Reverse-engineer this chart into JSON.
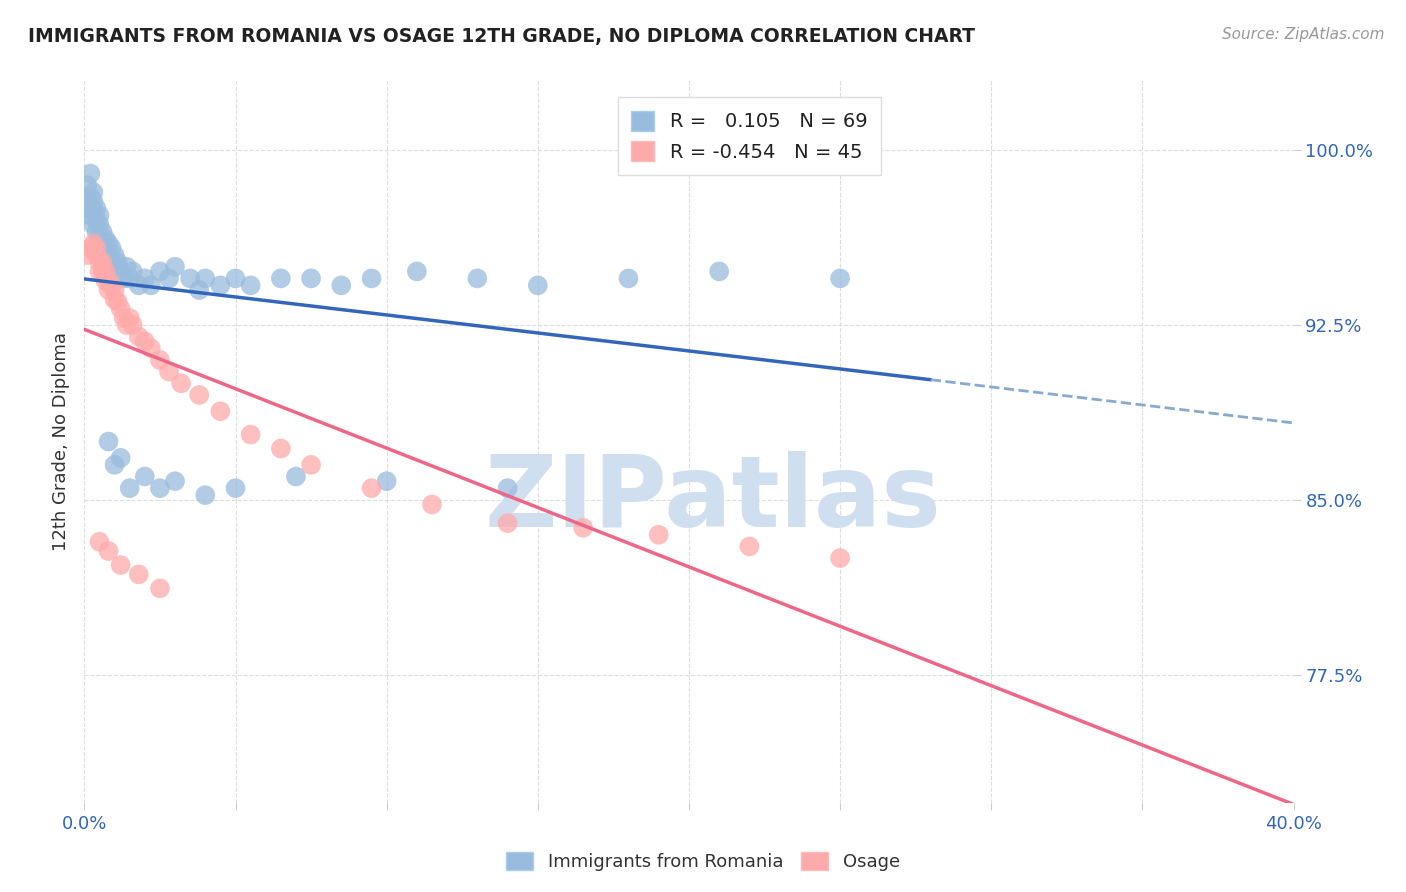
{
  "title": "IMMIGRANTS FROM ROMANIA VS OSAGE 12TH GRADE, NO DIPLOMA CORRELATION CHART",
  "source": "Source: ZipAtlas.com",
  "ylabel": "12th Grade, No Diploma",
  "ytick_labels": [
    "100.0%",
    "92.5%",
    "85.0%",
    "77.5%"
  ],
  "ytick_values": [
    1.0,
    0.925,
    0.85,
    0.775
  ],
  "R_romania": 0.105,
  "N_romania": 69,
  "R_osage": -0.454,
  "N_osage": 45,
  "romania_color": "#99BBDD",
  "osage_color": "#FFAAAA",
  "romania_line_color": "#3366BB",
  "osage_line_color": "#EE6688",
  "dashed_line_color": "#88AACC",
  "watermark_text": "ZIPatlas",
  "watermark_color": "#D0DFF0",
  "background_color": "#FFFFFF",
  "xlim": [
    0.0,
    0.4
  ],
  "ylim": [
    0.72,
    1.03
  ],
  "romania_x": [
    0.001,
    0.001,
    0.002,
    0.002,
    0.002,
    0.003,
    0.003,
    0.003,
    0.003,
    0.004,
    0.004,
    0.004,
    0.004,
    0.005,
    0.005,
    0.005,
    0.005,
    0.006,
    0.006,
    0.006,
    0.007,
    0.007,
    0.007,
    0.008,
    0.008,
    0.009,
    0.009,
    0.01,
    0.01,
    0.011,
    0.012,
    0.013,
    0.014,
    0.015,
    0.016,
    0.018,
    0.02,
    0.022,
    0.025,
    0.028,
    0.03,
    0.035,
    0.038,
    0.04,
    0.045,
    0.05,
    0.055,
    0.065,
    0.075,
    0.085,
    0.095,
    0.11,
    0.13,
    0.15,
    0.18,
    0.21,
    0.25,
    0.008,
    0.01,
    0.012,
    0.015,
    0.02,
    0.025,
    0.03,
    0.04,
    0.05,
    0.07,
    0.1,
    0.14
  ],
  "romania_y": [
    0.985,
    0.975,
    0.99,
    0.98,
    0.972,
    0.982,
    0.978,
    0.974,
    0.968,
    0.975,
    0.97,
    0.965,
    0.96,
    0.972,
    0.968,
    0.962,
    0.958,
    0.965,
    0.96,
    0.955,
    0.962,
    0.958,
    0.952,
    0.96,
    0.955,
    0.958,
    0.952,
    0.955,
    0.95,
    0.952,
    0.948,
    0.945,
    0.95,
    0.945,
    0.948,
    0.942,
    0.945,
    0.942,
    0.948,
    0.945,
    0.95,
    0.945,
    0.94,
    0.945,
    0.942,
    0.945,
    0.942,
    0.945,
    0.945,
    0.942,
    0.945,
    0.948,
    0.945,
    0.942,
    0.945,
    0.948,
    0.945,
    0.875,
    0.865,
    0.868,
    0.855,
    0.86,
    0.855,
    0.858,
    0.852,
    0.855,
    0.86,
    0.858,
    0.855
  ],
  "osage_x": [
    0.001,
    0.002,
    0.003,
    0.004,
    0.004,
    0.005,
    0.005,
    0.006,
    0.006,
    0.007,
    0.007,
    0.008,
    0.008,
    0.009,
    0.01,
    0.01,
    0.011,
    0.012,
    0.013,
    0.014,
    0.015,
    0.016,
    0.018,
    0.02,
    0.022,
    0.025,
    0.028,
    0.032,
    0.038,
    0.045,
    0.055,
    0.065,
    0.075,
    0.095,
    0.115,
    0.14,
    0.165,
    0.19,
    0.22,
    0.25,
    0.005,
    0.008,
    0.012,
    0.018,
    0.025
  ],
  "osage_y": [
    0.955,
    0.958,
    0.96,
    0.958,
    0.955,
    0.952,
    0.948,
    0.952,
    0.948,
    0.948,
    0.944,
    0.944,
    0.94,
    0.942,
    0.94,
    0.936,
    0.935,
    0.932,
    0.928,
    0.925,
    0.928,
    0.925,
    0.92,
    0.918,
    0.915,
    0.91,
    0.905,
    0.9,
    0.895,
    0.888,
    0.878,
    0.872,
    0.865,
    0.855,
    0.848,
    0.84,
    0.838,
    0.835,
    0.83,
    0.825,
    0.832,
    0.828,
    0.822,
    0.818,
    0.812
  ]
}
